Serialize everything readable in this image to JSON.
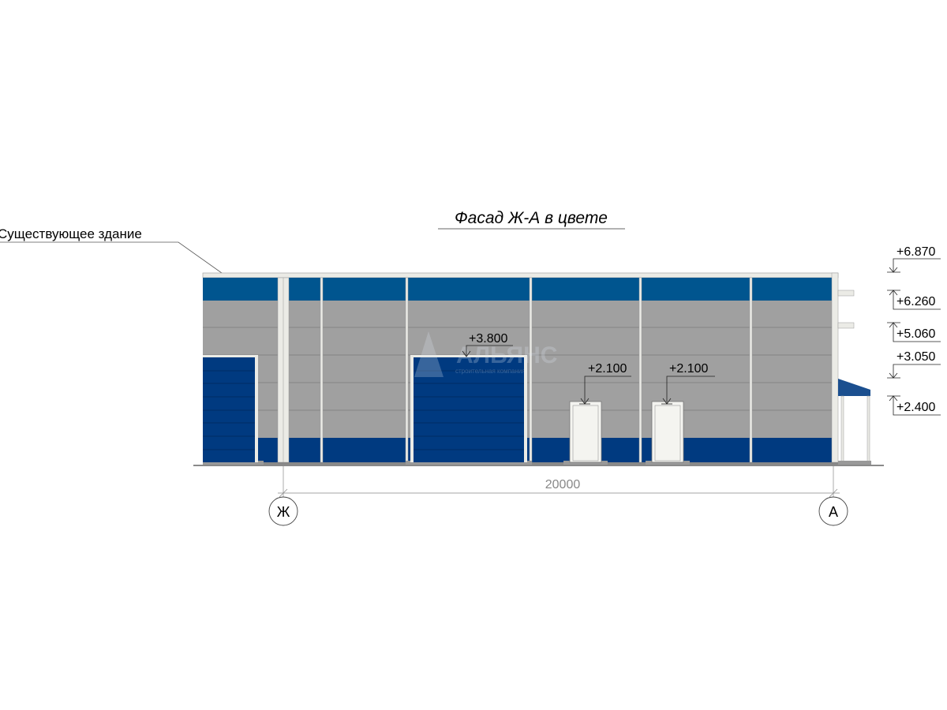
{
  "title": "Фасад Ж-А в цвете",
  "existing_building_label": "Существующее здание",
  "watermark": {
    "name": "АЛЬЯНС",
    "subtitle": "строительная компания"
  },
  "door_marks": [
    "+3.800",
    "+2.100",
    "+2.100"
  ],
  "level_marks": [
    "+6.870",
    "+6.260",
    "+5.060",
    "+3.050",
    "+2.400"
  ],
  "dimension": "20000",
  "axes": [
    "Ж",
    "А"
  ],
  "colors": {
    "top_band": "#00558f",
    "bottom_band": "#003a80",
    "wall": "#a0a0a0",
    "trim": "#ebebe6"
  }
}
